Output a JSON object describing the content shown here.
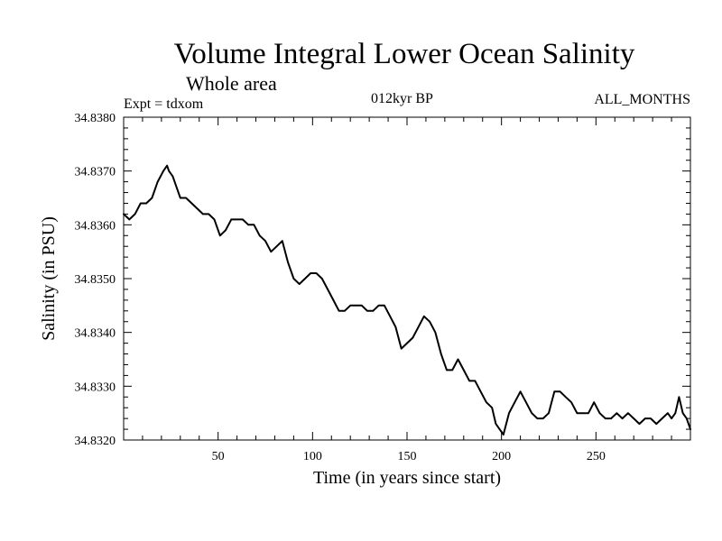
{
  "chart_data": {
    "type": "line",
    "title": "Volume Integral Lower Ocean Salinity",
    "subtitle": "Whole area",
    "annotations": {
      "experiment": "Expt = tdxom",
      "period": "012kyr BP",
      "months": "ALL_MONTHS"
    },
    "xlabel": "Time (in years since start)",
    "ylabel": "Salinity (in PSU)",
    "xlim": [
      0,
      300
    ],
    "ylim": [
      34.832,
      34.838
    ],
    "xticks": [
      50,
      100,
      150,
      200,
      250
    ],
    "xtick_labels": [
      "50",
      "100",
      "150",
      "200",
      "250"
    ],
    "yticks": [
      34.832,
      34.833,
      34.834,
      34.835,
      34.836,
      34.837,
      34.838
    ],
    "ytick_labels": [
      "34.8320",
      "34.8330",
      "34.8340",
      "34.8350",
      "34.8360",
      "34.8370",
      "34.8380"
    ],
    "grid": false,
    "colors": {
      "line": "#000000",
      "axes": "#000000"
    },
    "series": [
      {
        "x": [
          0,
          3,
          6,
          9,
          12,
          15,
          18,
          21,
          23,
          24,
          26,
          28,
          30,
          33,
          36,
          39,
          42,
          45,
          48,
          51,
          54,
          57,
          60,
          63,
          66,
          69,
          72,
          75,
          78,
          81,
          84,
          87,
          90,
          93,
          96,
          99,
          102,
          105,
          108,
          111,
          114,
          117,
          120,
          123,
          126,
          129,
          132,
          135,
          138,
          141,
          144,
          147,
          150,
          153,
          156,
          159,
          162,
          165,
          168,
          171,
          174,
          177,
          180,
          183,
          186,
          189,
          192,
          195,
          197,
          199,
          201,
          204,
          207,
          210,
          213,
          216,
          219,
          222,
          225,
          228,
          231,
          234,
          237,
          240,
          243,
          246,
          249,
          252,
          255,
          258,
          261,
          264,
          267,
          270,
          273,
          276,
          279,
          282,
          285,
          288,
          290,
          292,
          294,
          296,
          298,
          300
        ],
        "y": [
          34.8362,
          34.8361,
          34.8362,
          34.8364,
          34.8364,
          34.8365,
          34.8368,
          34.837,
          34.8371,
          34.837,
          34.8369,
          34.8367,
          34.8365,
          34.8365,
          34.8364,
          34.8363,
          34.8362,
          34.8362,
          34.8361,
          34.8358,
          34.8359,
          34.8361,
          34.8361,
          34.8361,
          34.836,
          34.836,
          34.8358,
          34.8357,
          34.8355,
          34.8356,
          34.8357,
          34.8353,
          34.835,
          34.8349,
          34.835,
          34.8351,
          34.8351,
          34.835,
          34.8348,
          34.8346,
          34.8344,
          34.8344,
          34.8345,
          34.8345,
          34.8345,
          34.8344,
          34.8344,
          34.8345,
          34.8345,
          34.8343,
          34.8341,
          34.8337,
          34.8338,
          34.8339,
          34.8341,
          34.8343,
          34.8342,
          34.834,
          34.8336,
          34.8333,
          34.8333,
          34.8335,
          34.8333,
          34.8331,
          34.8331,
          34.8329,
          34.8327,
          34.8326,
          34.8323,
          34.8322,
          34.8321,
          34.8325,
          34.8327,
          34.8329,
          34.8327,
          34.8325,
          34.8324,
          34.8324,
          34.8325,
          34.8329,
          34.8329,
          34.8328,
          34.8327,
          34.8325,
          34.8325,
          34.8325,
          34.8327,
          34.8325,
          34.8324,
          34.8324,
          34.8325,
          34.8324,
          34.8325,
          34.8324,
          34.8323,
          34.8324,
          34.8324,
          34.8323,
          34.8324,
          34.8325,
          34.8324,
          34.8325,
          34.8328,
          34.8325,
          34.8324,
          34.8322
        ]
      }
    ]
  }
}
